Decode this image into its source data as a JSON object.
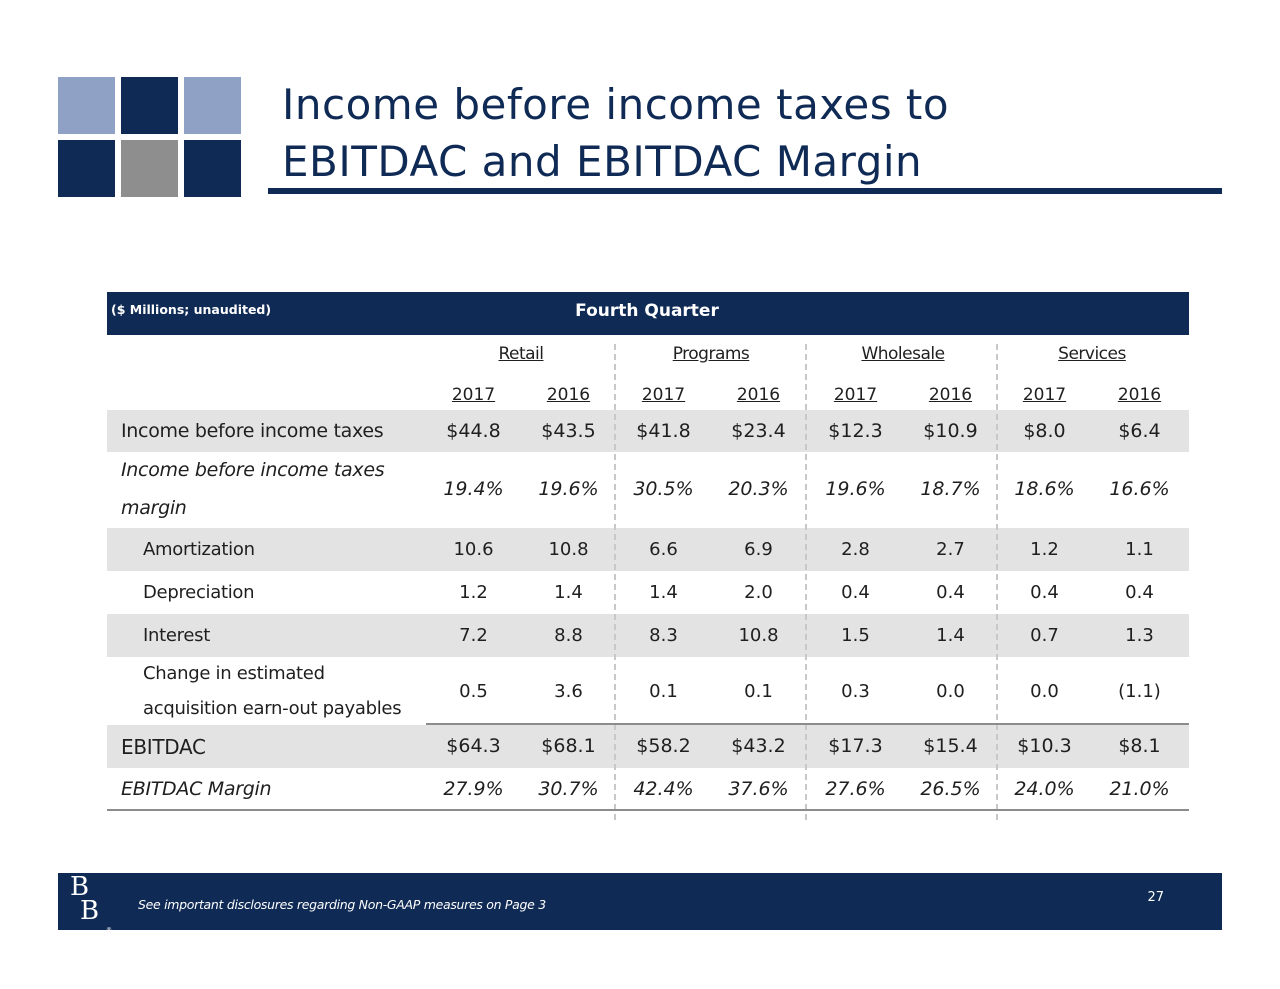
{
  "title": {
    "line1": "Income before income taxes to",
    "line2": "EBITDAC and EBITDAC Margin"
  },
  "colors": {
    "navy": "#0f2a55",
    "light_blue": "#8fa1c4",
    "gray": "#8e8e8e",
    "row_shade": "#e3e3e3"
  },
  "table": {
    "units_label": "($ Millions; unaudited)",
    "period_label": "Fourth Quarter",
    "segments": [
      "Retail",
      "Programs",
      "Wholesale",
      "Services"
    ],
    "years": [
      "2017",
      "2016",
      "2017",
      "2016",
      "2017",
      "2016",
      "2017",
      "2016"
    ],
    "rows": [
      {
        "label": "Income before income taxes",
        "values": [
          "$44.8",
          "$43.5",
          "$41.8",
          "$23.4",
          "$12.3",
          "$10.9",
          "$8.0",
          "$6.4"
        ]
      },
      {
        "label_line1": "Income before income taxes",
        "label_line2": "margin",
        "values": [
          "19.4%",
          "19.6%",
          "30.5%",
          "20.3%",
          "19.6%",
          "18.7%",
          "18.6%",
          "16.6%"
        ]
      },
      {
        "label": "Amortization",
        "values": [
          "10.6",
          "10.8",
          "6.6",
          "6.9",
          "2.8",
          "2.7",
          "1.2",
          "1.1"
        ]
      },
      {
        "label": "Depreciation",
        "values": [
          "1.2",
          "1.4",
          "1.4",
          "2.0",
          "0.4",
          "0.4",
          "0.4",
          "0.4"
        ]
      },
      {
        "label": "Interest",
        "values": [
          "7.2",
          "8.8",
          "8.3",
          "10.8",
          "1.5",
          "1.4",
          "0.7",
          "1.3"
        ]
      },
      {
        "label_line1": "Change in estimated",
        "label_line2": "acquisition earn-out payables",
        "values": [
          "0.5",
          "3.6",
          "0.1",
          "0.1",
          "0.3",
          "0.0",
          "0.0",
          "(1.1)"
        ]
      },
      {
        "label": "EBITDAC",
        "values": [
          "$64.3",
          "$68.1",
          "$58.2",
          "$43.2",
          "$17.3",
          "$15.4",
          "$10.3",
          "$8.1"
        ]
      },
      {
        "label": "EBITDAC Margin",
        "values": [
          "27.9%",
          "30.7%",
          "42.4%",
          "37.6%",
          "27.6%",
          "26.5%",
          "24.0%",
          "21.0%"
        ]
      }
    ]
  },
  "footer": {
    "logo_letter": "B",
    "logo_reg": "®",
    "disclosure": "See important disclosures regarding Non-GAAP measures on Page 3",
    "page_number": "27"
  }
}
